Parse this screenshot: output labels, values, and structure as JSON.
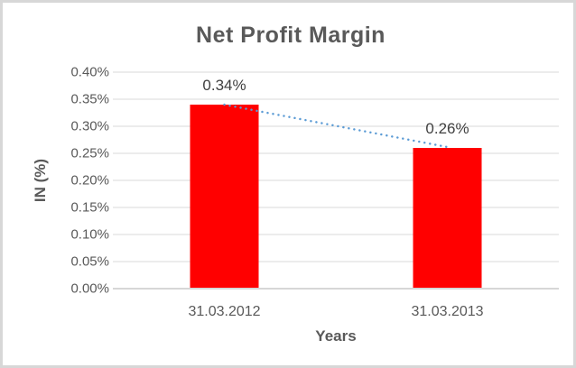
{
  "chart_data": {
    "type": "bar",
    "title": "Net Profit Margin",
    "xlabel": "Years",
    "ylabel": "IN (%)",
    "categories": [
      "31.03.2012",
      "31.03.2013"
    ],
    "series": [
      {
        "name": "Net Profit Margin",
        "values": [
          0.34,
          0.26
        ]
      }
    ],
    "data_labels": [
      "0.34%",
      "0.26%"
    ],
    "yticks": [
      "0.00%",
      "0.05%",
      "0.10%",
      "0.15%",
      "0.20%",
      "0.25%",
      "0.30%",
      "0.35%",
      "0.40%"
    ],
    "ylim": [
      0,
      0.4
    ],
    "grid": true,
    "legend": "none",
    "trendline": {
      "type": "linear",
      "style": "dotted-line"
    },
    "colors": {
      "bar": "#ff0000",
      "trendline": "#5b9bd5",
      "gridline": "#d9d9d9",
      "axis_line": "#bfbfbf",
      "title_text": "#595959",
      "tick_text": "#595959",
      "data_label_text": "#404040"
    }
  }
}
